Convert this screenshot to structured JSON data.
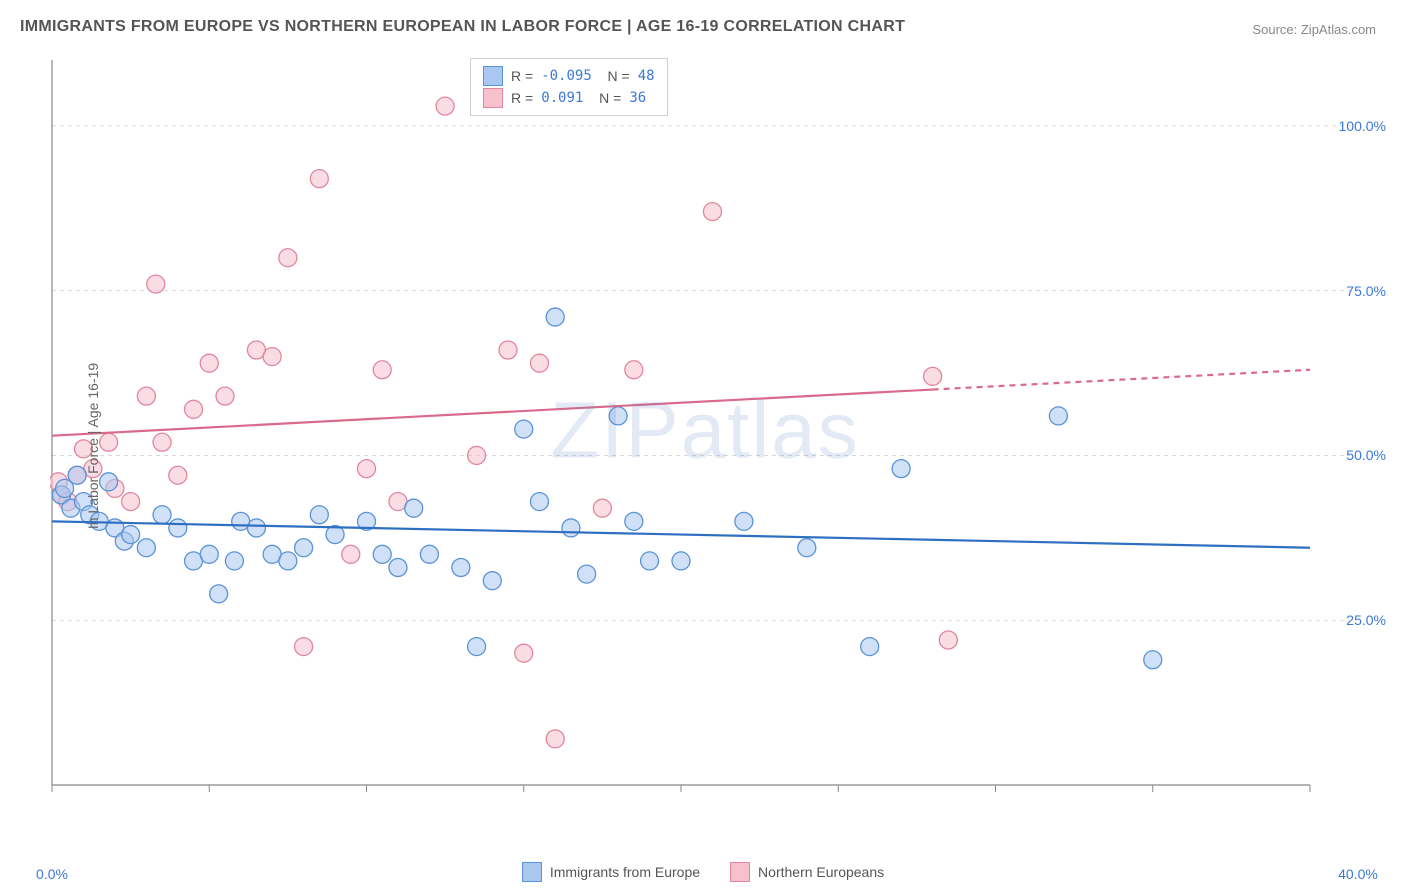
{
  "title": "IMMIGRANTS FROM EUROPE VS NORTHERN EUROPEAN IN LABOR FORCE | AGE 16-19 CORRELATION CHART",
  "source": "Source: ZipAtlas.com",
  "watermark": "ZIPatlas",
  "y_axis_label": "In Labor Force | Age 16-19",
  "chart": {
    "type": "scatter",
    "xlim": [
      0,
      40
    ],
    "ylim": [
      0,
      110
    ],
    "x_ticks": [
      0,
      5,
      10,
      15,
      20,
      25,
      30,
      35,
      40
    ],
    "x_tick_labels": [
      "0.0%",
      "",
      "",
      "",
      "",
      "",
      "",
      "",
      "40.0%"
    ],
    "y_grid": [
      25,
      50,
      75,
      100
    ],
    "y_tick_labels": [
      "25.0%",
      "50.0%",
      "75.0%",
      "100.0%"
    ],
    "grid_color": "#d8d8d8",
    "axis_color": "#888888",
    "background_color": "#ffffff",
    "marker_radius": 9,
    "marker_opacity": 0.55,
    "line_width": 2.2,
    "series": [
      {
        "name": "Immigrants from Europe",
        "color_fill": "#a9c7ef",
        "color_stroke": "#5a93d6",
        "line_color": "#2f6fc2",
        "R": "-0.095",
        "N": "48",
        "trend": {
          "x1": 0,
          "y1": 40,
          "x2": 40,
          "y2": 36,
          "dash_after_x": 40
        },
        "points": [
          [
            0.3,
            44
          ],
          [
            0.4,
            45
          ],
          [
            0.6,
            42
          ],
          [
            0.8,
            47
          ],
          [
            1.0,
            43
          ],
          [
            1.2,
            41
          ],
          [
            1.5,
            40
          ],
          [
            1.8,
            46
          ],
          [
            2.0,
            39
          ],
          [
            2.3,
            37
          ],
          [
            2.5,
            38
          ],
          [
            3.0,
            36
          ],
          [
            3.5,
            41
          ],
          [
            4.0,
            39
          ],
          [
            4.5,
            34
          ],
          [
            5.0,
            35
          ],
          [
            5.3,
            29
          ],
          [
            5.8,
            34
          ],
          [
            6.0,
            40
          ],
          [
            6.5,
            39
          ],
          [
            7.0,
            35
          ],
          [
            7.5,
            34
          ],
          [
            8.0,
            36
          ],
          [
            8.5,
            41
          ],
          [
            9.0,
            38
          ],
          [
            10.0,
            40
          ],
          [
            10.5,
            35
          ],
          [
            11.0,
            33
          ],
          [
            11.5,
            42
          ],
          [
            12.0,
            35
          ],
          [
            13.0,
            33
          ],
          [
            13.5,
            21
          ],
          [
            14.0,
            31
          ],
          [
            15.0,
            54
          ],
          [
            15.5,
            43
          ],
          [
            16.0,
            71
          ],
          [
            16.5,
            39
          ],
          [
            17.0,
            32
          ],
          [
            18.0,
            56
          ],
          [
            18.5,
            40
          ],
          [
            19.0,
            34
          ],
          [
            20.0,
            34
          ],
          [
            22.0,
            40
          ],
          [
            24.0,
            36
          ],
          [
            26.0,
            21
          ],
          [
            27.0,
            48
          ],
          [
            32.0,
            56
          ],
          [
            35.0,
            19
          ]
        ]
      },
      {
        "name": "Northern Europeans",
        "color_fill": "#f6c0cd",
        "color_stroke": "#e2869f",
        "line_color": "#d96a8a",
        "R": " 0.091",
        "N": "36",
        "trend": {
          "x1": 0,
          "y1": 53,
          "x2": 28,
          "y2": 60,
          "dash_after_x": 28,
          "x3": 40,
          "y3": 63
        },
        "points": [
          [
            0.2,
            46
          ],
          [
            0.3,
            44
          ],
          [
            0.5,
            43
          ],
          [
            0.8,
            47
          ],
          [
            1.0,
            51
          ],
          [
            1.3,
            48
          ],
          [
            1.8,
            52
          ],
          [
            2.0,
            45
          ],
          [
            2.5,
            43
          ],
          [
            3.0,
            59
          ],
          [
            3.3,
            76
          ],
          [
            3.5,
            52
          ],
          [
            4.0,
            47
          ],
          [
            4.5,
            57
          ],
          [
            5.0,
            64
          ],
          [
            5.5,
            59
          ],
          [
            6.5,
            66
          ],
          [
            7.0,
            65
          ],
          [
            7.5,
            80
          ],
          [
            8.0,
            21
          ],
          [
            8.5,
            92
          ],
          [
            9.5,
            35
          ],
          [
            10.0,
            48
          ],
          [
            10.5,
            63
          ],
          [
            11.0,
            43
          ],
          [
            12.5,
            103
          ],
          [
            13.5,
            50
          ],
          [
            14.5,
            66
          ],
          [
            15.0,
            20
          ],
          [
            15.5,
            64
          ],
          [
            16.0,
            7
          ],
          [
            17.5,
            42
          ],
          [
            18.5,
            63
          ],
          [
            21.0,
            87
          ],
          [
            28.0,
            62
          ],
          [
            28.5,
            22
          ]
        ]
      }
    ]
  },
  "legend_bottom": [
    {
      "label": "Immigrants from Europe",
      "fill": "#a9c7ef",
      "stroke": "#5a93d6"
    },
    {
      "label": "Northern Europeans",
      "fill": "#f6c0cd",
      "stroke": "#e2869f"
    }
  ]
}
